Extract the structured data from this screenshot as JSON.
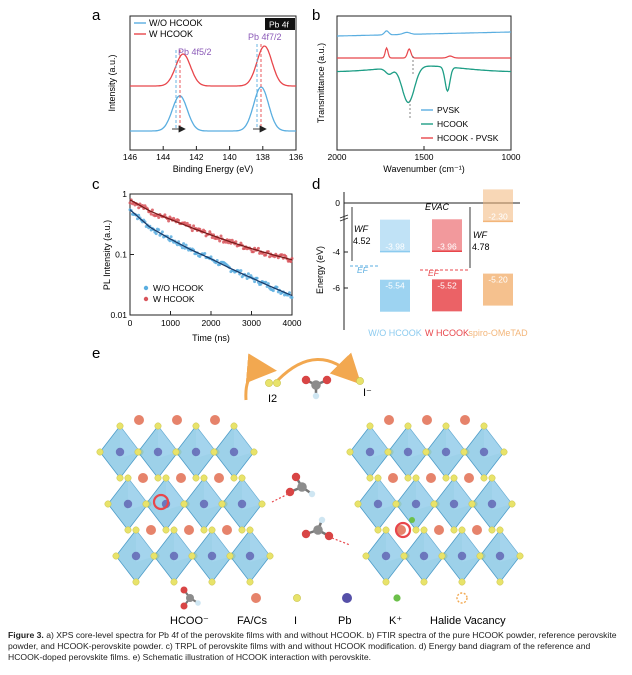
{
  "panels": {
    "a": {
      "label": "a",
      "xlabel": "Binding Energy (eV)",
      "ylabel": "Intensity (a.u.)",
      "xticks": [
        "146",
        "144",
        "142",
        "140",
        "138",
        "136"
      ],
      "legend": [
        "W/O HCOOK",
        "W HCOOK"
      ],
      "tag": "Pb 4f",
      "peak1": "Pb 4f5/2",
      "peak2": "Pb 4f7/2",
      "colors": {
        "wo": "#5aaee0",
        "w": "#e8464b"
      }
    },
    "b": {
      "label": "b",
      "xlabel": "Wavenumber (cm⁻¹)",
      "ylabel": "Transmittance (a.u.)",
      "xticks": [
        "2000",
        "1500",
        "1000"
      ],
      "legend": [
        "PVSK",
        "HCOOK",
        "HCOOK - PVSK"
      ],
      "colors": {
        "pvsk": "#5aaee0",
        "hcook": "#1e9e86",
        "mix": "#e8464b"
      }
    },
    "c": {
      "label": "c",
      "xlabel": "Time (ns)",
      "ylabel": "PL Intensity (a.u.)",
      "xticks": [
        "0",
        "1000",
        "2000",
        "3000",
        "4000"
      ],
      "yticks": [
        "1",
        "0.1",
        "0.01"
      ],
      "legend": [
        "W/O HCOOK",
        "W HCOOK"
      ]
    },
    "d": {
      "label": "d",
      "ylabel": "Energy (eV)",
      "yticks": [
        "0",
        "-4",
        "-6"
      ],
      "evac": "EVAC",
      "wf1_label": "WF",
      "wf1": "4.52",
      "wf2": "4.78",
      "ef": "EF",
      "columns": [
        {
          "name": "W/O HCOOK",
          "cb": "-3.98",
          "vb": "-5.54",
          "color": "#8ccbef"
        },
        {
          "name": "W HCOOK",
          "cb": "-3.96",
          "vb": "-5.52",
          "color": "#e8464b"
        },
        {
          "name": "spiro-OMeTAD",
          "cb": "-2.30",
          "vb": "-5.20",
          "color": "#f3b67a"
        }
      ]
    },
    "e": {
      "label": "e",
      "i2": "I2",
      "iminus": "I⁻",
      "legend": [
        "HCOO⁻",
        "FA/Cs",
        "I",
        "Pb",
        "K⁺",
        "Halide Vacancy"
      ]
    }
  },
  "caption": {
    "lead": "Figure 3.",
    "text": " a) XPS core-level spectra for Pb 4f of the perovskite films with and without HCOOK. b) FTIR spectra of the pure HCOOK powder, reference perovskite powder, and HCOOK-perovskite powder. c) TRPL of perovskite films with and without HCOOK modification. d) Energy band diagram of the reference and HCOOK-doped perovskite films. e) Schematic illustration of HCOOK interaction with perovskite."
  },
  "chart_data": [
    {
      "type": "line",
      "title": "Pb 4f XPS",
      "xlabel": "Binding Energy (eV)",
      "ylabel": "Intensity (a.u.)",
      "xlim": [
        146,
        136
      ],
      "series": [
        {
          "name": "W/O HCOOK",
          "peaks_eV": [
            143.0,
            138.1
          ]
        },
        {
          "name": "W HCOOK",
          "peaks_eV": [
            142.8,
            137.9
          ]
        }
      ]
    },
    {
      "type": "line",
      "title": "FTIR",
      "xlabel": "Wavenumber (cm⁻¹)",
      "ylabel": "Transmittance (a.u.)",
      "xlim": [
        2000,
        1000
      ],
      "series": [
        {
          "name": "PVSK"
        },
        {
          "name": "HCOOK",
          "dips_cm": [
            1590,
            1360
          ]
        },
        {
          "name": "HCOOK - PVSK",
          "dips_cm": [
            1710,
            1580
          ]
        }
      ]
    },
    {
      "type": "scatter",
      "title": "TRPL",
      "xlabel": "Time (ns)",
      "ylabel": "PL Intensity (a.u.)",
      "xlim": [
        0,
        4000
      ],
      "ylim": [
        0.01,
        1
      ],
      "yscale": "log",
      "series": [
        {
          "name": "W/O HCOOK",
          "x": [
            0,
            500,
            1000,
            1500,
            2000,
            2500,
            3000,
            3500,
            4000
          ],
          "y": [
            0.55,
            0.28,
            0.18,
            0.12,
            0.085,
            0.058,
            0.041,
            0.029,
            0.021
          ]
        },
        {
          "name": "W HCOOK",
          "x": [
            0,
            500,
            1000,
            1500,
            2000,
            2500,
            3000,
            3500,
            4000
          ],
          "y": [
            0.8,
            0.52,
            0.38,
            0.28,
            0.21,
            0.16,
            0.125,
            0.1,
            0.082
          ]
        }
      ]
    },
    {
      "type": "bar",
      "title": "Energy band diagram",
      "ylabel": "Energy (eV)",
      "categories": [
        "W/O HCOOK",
        "W HCOOK",
        "spiro-OMeTAD"
      ],
      "series": [
        {
          "name": "CB",
          "values": [
            -3.98,
            -3.96,
            -2.3
          ]
        },
        {
          "name": "VB",
          "values": [
            -5.54,
            -5.52,
            -5.2
          ]
        }
      ],
      "work_function": [
        4.52,
        4.78
      ]
    }
  ]
}
